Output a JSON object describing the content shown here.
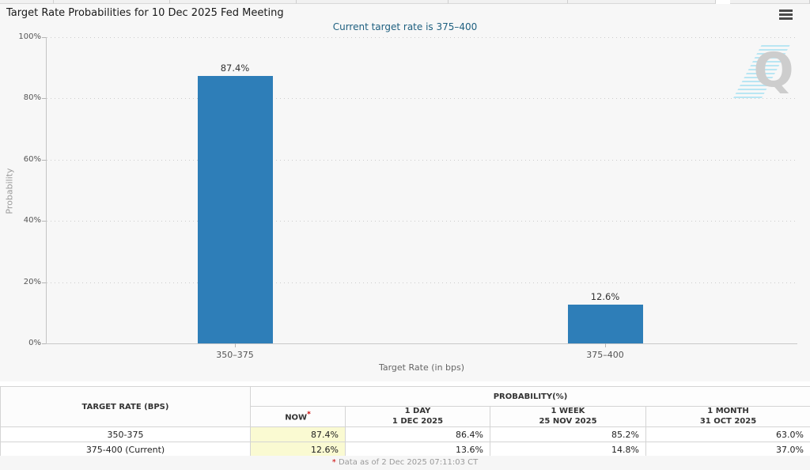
{
  "chart_data": {
    "type": "bar",
    "title": "Target Rate Probabilities for 10 Dec 2025 Fed Meeting",
    "subtitle": "Current target rate is 375–400",
    "categories": [
      "350–375",
      "375–400"
    ],
    "values": [
      87.4,
      12.6
    ],
    "value_labels": [
      "87.4%",
      "12.6%"
    ],
    "xlabel": "Target Rate (in bps)",
    "ylabel": "Probability",
    "ylim": [
      0,
      100
    ],
    "yticks": [
      0,
      20,
      40,
      60,
      80,
      100
    ],
    "ytick_labels": [
      "0%",
      "20%",
      "40%",
      "60%",
      "80%",
      "100%"
    ],
    "bar_color": "#2e7eb8",
    "grid": "horizontal-dotted",
    "legend": "none"
  },
  "watermark": {
    "letter": "Q"
  },
  "table": {
    "col1_header": "TARGET RATE (BPS)",
    "group_header": "PROBABILITY(%)",
    "columns": [
      {
        "label": "NOW",
        "sup": "*",
        "date": ""
      },
      {
        "label": "1 DAY",
        "date": "1 DEC 2025"
      },
      {
        "label": "1 WEEK",
        "date": "25 NOV 2025"
      },
      {
        "label": "1 MONTH",
        "date": "31 OCT 2025"
      }
    ],
    "rows": [
      {
        "rate": "350-375",
        "now": "87.4%",
        "day": "86.4%",
        "week": "85.2%",
        "month": "63.0%"
      },
      {
        "rate": "375-400 (Current)",
        "now": "12.6%",
        "day": "13.6%",
        "week": "14.8%",
        "month": "37.0%"
      }
    ],
    "footnote_marker": "*",
    "footnote": "Data as of 2 Dec 2025 07:11:03 CT"
  }
}
